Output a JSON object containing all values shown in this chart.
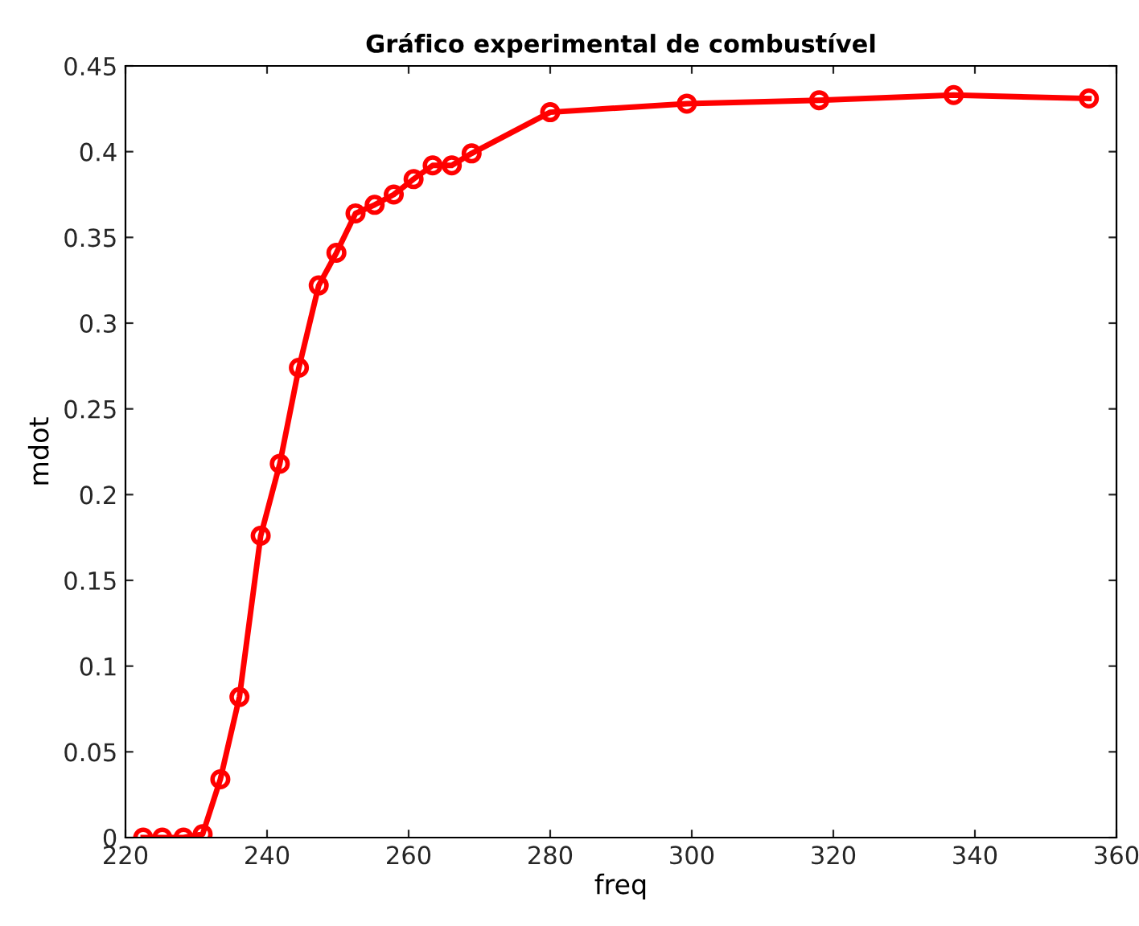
{
  "chart_data": {
    "type": "line",
    "title": "Gráfico experimental de combustível",
    "xlabel": "freq",
    "ylabel": "mdot",
    "x": [
      222.5,
      225.2,
      228.2,
      230.9,
      233.4,
      236.1,
      239.1,
      241.8,
      244.5,
      247.3,
      249.8,
      252.5,
      255.2,
      257.9,
      260.7,
      263.4,
      266.1,
      268.9,
      280,
      299.3,
      318,
      337,
      356.1
    ],
    "series": [
      {
        "color": "#ff0000",
        "values": [
          0,
          0,
          0,
          0.002,
          0.034,
          0.082,
          0.176,
          0.218,
          0.274,
          0.322,
          0.341,
          0.364,
          0.369,
          0.375,
          0.384,
          0.392,
          0.392,
          0.399,
          0.423,
          0.428,
          0.43,
          0.433,
          0.431
        ]
      }
    ],
    "xlim": [
      220,
      360
    ],
    "xticks": [
      220,
      240,
      260,
      280,
      300,
      320,
      340,
      360
    ],
    "ylim": [
      0,
      0.45
    ],
    "yticks": [
      0,
      0.05,
      0.1,
      0.15,
      0.2,
      0.25,
      0.3,
      0.35,
      0.4,
      0.45
    ],
    "grid": false,
    "marker": "circle",
    "line_style": "solid"
  }
}
